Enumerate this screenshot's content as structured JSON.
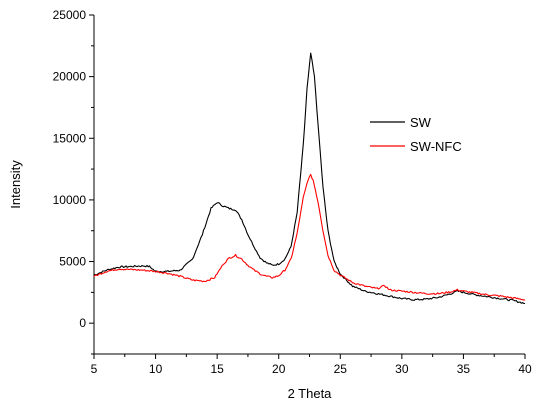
{
  "chart_data": {
    "type": "line",
    "xlabel": "2 Theta",
    "ylabel": "Intensity",
    "xlim": [
      5,
      40
    ],
    "ylim": [
      -2500,
      25000
    ],
    "xticks": [
      5,
      10,
      15,
      20,
      25,
      30,
      35,
      40
    ],
    "yticks": [
      0,
      5000,
      10000,
      15000,
      20000,
      25000
    ],
    "grid": false,
    "legend_position": "right",
    "series": [
      {
        "name": "SW",
        "color": "#000000",
        "points": [
          [
            5,
            3900
          ],
          [
            6,
            4300
          ],
          [
            7,
            4550
          ],
          [
            8,
            4600
          ],
          [
            9,
            4650
          ],
          [
            9.5,
            4600
          ],
          [
            10,
            4200
          ],
          [
            11,
            4200
          ],
          [
            12,
            4300
          ],
          [
            13,
            5200
          ],
          [
            13.8,
            7200
          ],
          [
            14.5,
            9300
          ],
          [
            15,
            9800
          ],
          [
            15.5,
            9500
          ],
          [
            16,
            9300
          ],
          [
            16.5,
            9200
          ],
          [
            17,
            8400
          ],
          [
            17.5,
            7200
          ],
          [
            18,
            6200
          ],
          [
            18.5,
            5300
          ],
          [
            19,
            4900
          ],
          [
            19.5,
            4700
          ],
          [
            20,
            4800
          ],
          [
            20.5,
            5200
          ],
          [
            21,
            6200
          ],
          [
            21.5,
            9000
          ],
          [
            22,
            14500
          ],
          [
            22.3,
            19000
          ],
          [
            22.6,
            21900
          ],
          [
            22.9,
            20000
          ],
          [
            23.2,
            16000
          ],
          [
            23.6,
            11000
          ],
          [
            24,
            7500
          ],
          [
            24.5,
            5000
          ],
          [
            25,
            4000
          ],
          [
            26,
            3000
          ],
          [
            27,
            2600
          ],
          [
            28,
            2400
          ],
          [
            29,
            2200
          ],
          [
            30,
            2000
          ],
          [
            31,
            1900
          ],
          [
            32,
            1950
          ],
          [
            33,
            2100
          ],
          [
            34,
            2400
          ],
          [
            34.5,
            2600
          ],
          [
            35,
            2500
          ],
          [
            36,
            2300
          ],
          [
            37,
            2150
          ],
          [
            38,
            2000
          ],
          [
            39,
            1850
          ],
          [
            40,
            1600
          ]
        ]
      },
      {
        "name": "SW-NFC",
        "color": "#ff0000",
        "points": [
          [
            5,
            3800
          ],
          [
            6,
            4200
          ],
          [
            7,
            4400
          ],
          [
            8,
            4350
          ],
          [
            9,
            4300
          ],
          [
            10,
            4200
          ],
          [
            11,
            4050
          ],
          [
            12,
            3800
          ],
          [
            13,
            3500
          ],
          [
            14,
            3400
          ],
          [
            14.8,
            3700
          ],
          [
            15.5,
            4800
          ],
          [
            16,
            5300
          ],
          [
            16.5,
            5500
          ],
          [
            17,
            5200
          ],
          [
            17.5,
            4700
          ],
          [
            18,
            4300
          ],
          [
            18.5,
            4000
          ],
          [
            19,
            3800
          ],
          [
            19.5,
            3700
          ],
          [
            20,
            3850
          ],
          [
            20.5,
            4300
          ],
          [
            21,
            5200
          ],
          [
            21.5,
            7300
          ],
          [
            22,
            10200
          ],
          [
            22.4,
            11700
          ],
          [
            22.6,
            12000
          ],
          [
            22.8,
            11600
          ],
          [
            23.2,
            9800
          ],
          [
            23.6,
            7500
          ],
          [
            24,
            5500
          ],
          [
            24.5,
            4300
          ],
          [
            25,
            3900
          ],
          [
            26,
            3300
          ],
          [
            27,
            3000
          ],
          [
            28,
            2800
          ],
          [
            28.6,
            3050
          ],
          [
            29,
            2700
          ],
          [
            30,
            2600
          ],
          [
            31,
            2500
          ],
          [
            32,
            2400
          ],
          [
            33,
            2400
          ],
          [
            34,
            2550
          ],
          [
            34.5,
            2700
          ],
          [
            35,
            2600
          ],
          [
            36,
            2450
          ],
          [
            37,
            2300
          ],
          [
            38,
            2200
          ],
          [
            39,
            2050
          ],
          [
            40,
            1900
          ]
        ]
      }
    ]
  }
}
